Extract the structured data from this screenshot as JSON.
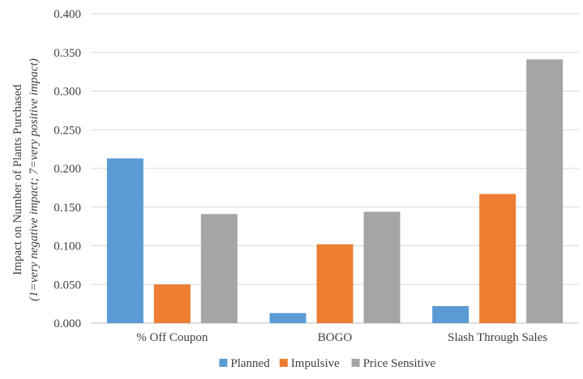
{
  "chart_data": {
    "type": "bar",
    "title": "",
    "xlabel": "",
    "ylabel": "Impact on Number of Plants Purchased",
    "ylabel_sub": "(1=very negative impact; 7=very positive impact)",
    "categories": [
      "% Off Coupon",
      "BOGO",
      "Slash Through Sales"
    ],
    "series": [
      {
        "name": "Planned",
        "color": "#5B9BD5",
        "values": [
          0.213,
          0.013,
          0.022
        ]
      },
      {
        "name": "Impulsive",
        "color": "#ED7D31",
        "values": [
          0.05,
          0.102,
          0.167
        ]
      },
      {
        "name": "Price Sensitive",
        "color": "#A5A5A5",
        "values": [
          0.141,
          0.144,
          0.341
        ]
      }
    ],
    "ylim": [
      0,
      0.4
    ],
    "yticks": [
      "0.000",
      "0.050",
      "0.100",
      "0.150",
      "0.200",
      "0.250",
      "0.300",
      "0.350",
      "0.400"
    ],
    "grid": true,
    "legend": "bottom"
  }
}
